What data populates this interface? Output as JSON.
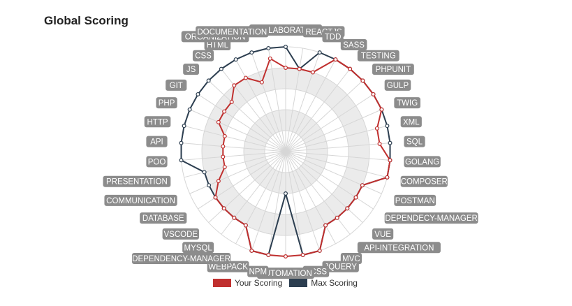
{
  "title": "Global Scoring",
  "colors": {
    "your": "#c0302f",
    "max": "#2c3e50",
    "label_bg": "#8c8c8c"
  },
  "chart_data": {
    "type": "radar",
    "title": "Global Scoring",
    "scale": {
      "min": 0,
      "max": 5,
      "rings": 5,
      "shaded_rings": [
        2,
        4
      ]
    },
    "legend_position": "bottom",
    "categories": [
      "COLLABORATION",
      "REACTJS",
      "TDD",
      "SASS",
      "TESTING",
      "PHPUNIT",
      "GULP",
      "TWIG",
      "XML",
      "SQL",
      "GOLANG",
      "COMPOSER",
      "POSTMAN",
      "DEPENDECY-MANAGER",
      "VUE",
      "API-INTEGRATION",
      "MVC",
      "JQUERY",
      "SCSS",
      "AUTOMATION",
      "NPM",
      "WEBPACK",
      "DEPENDENCY-MANAGER",
      "MYSQL",
      "VSCODE",
      "DATABASE",
      "COMMUNICATION",
      "PRESENTATION",
      "POO",
      "API",
      "HTTP",
      "PHP",
      "GIT",
      "JS",
      "CSS",
      "HTML",
      "ORGANIZATION",
      "DOCUMENTATION"
    ],
    "series": [
      {
        "name": "Your Scoring",
        "values": [
          4,
          4,
          4,
          5,
          5,
          5,
          5,
          5,
          4.5,
          4.5,
          5,
          5,
          4,
          4,
          4,
          4,
          4,
          5,
          5,
          5,
          5,
          5,
          4,
          4,
          4,
          4,
          3.5,
          3,
          3,
          3,
          3,
          3.5,
          3.5,
          3.5,
          4,
          4,
          3.5,
          4.5
        ]
      },
      {
        "name": "Max Scoring",
        "values": [
          5,
          4,
          5,
          5,
          5,
          5,
          5,
          5,
          5,
          5,
          5,
          5,
          4,
          4,
          4,
          4,
          4,
          5,
          5,
          2,
          5,
          5,
          4,
          4,
          4,
          4,
          4,
          4,
          5,
          5,
          5,
          5,
          5,
          5,
          5,
          5,
          5,
          5
        ]
      }
    ]
  }
}
